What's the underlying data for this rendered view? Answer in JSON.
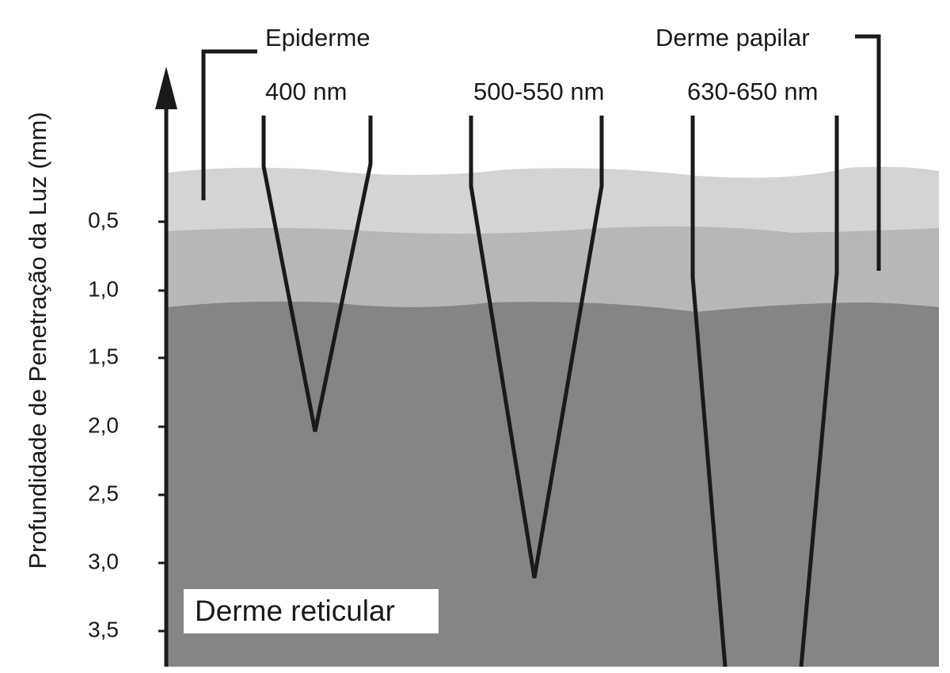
{
  "axis": {
    "title": "Profundidade de Penetração da Luz (mm)",
    "ticks": [
      "0,5",
      "1,0",
      "1,5",
      "2,0",
      "2,5",
      "3,0",
      "3,5"
    ]
  },
  "layers": {
    "epidermis": "Epiderme",
    "papillary_dermis": "Derme papilar",
    "reticular_dermis": "Derme reticular"
  },
  "wavelengths": [
    "400 nm",
    "500-550 nm",
    "630-650 nm"
  ]
}
